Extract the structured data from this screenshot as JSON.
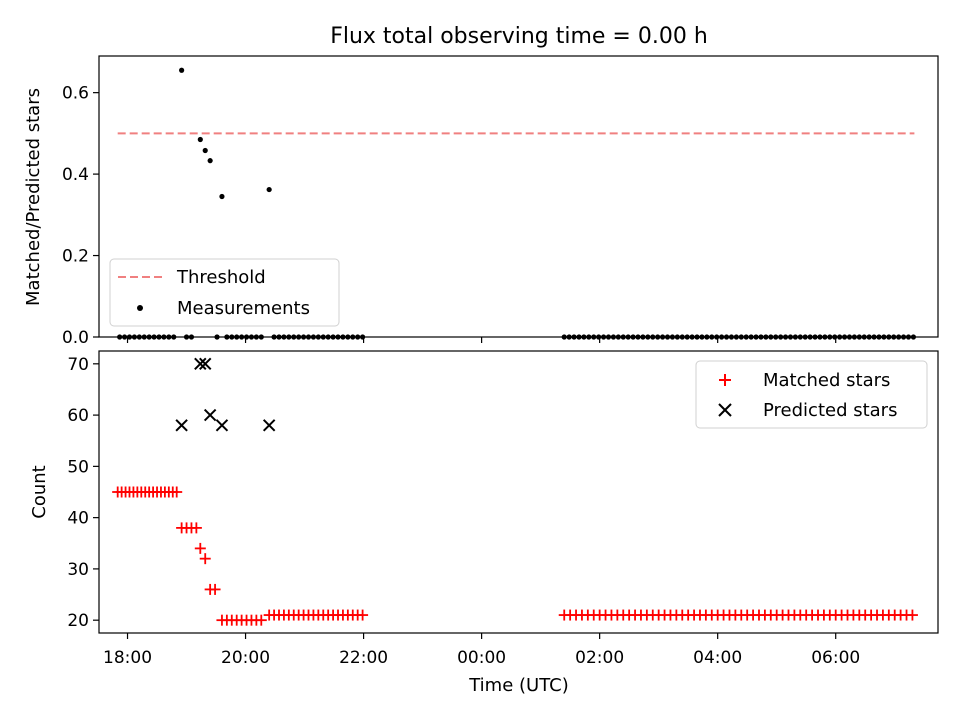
{
  "chart_data": [
    {
      "type": "scatter",
      "title": "Flux total observing time = 0.00 h",
      "xlabel": "",
      "ylabel": "Matched/Predicted stars",
      "xlim": [
        "17:31",
        "07:44"
      ],
      "ylim": [
        0,
        0.69
      ],
      "yticks": [
        0.0,
        0.2,
        0.4,
        0.6
      ],
      "ytick_labels": [
        "0.0",
        "0.2",
        "0.4",
        "0.6"
      ],
      "legend": {
        "placement": "lower-left",
        "entries": [
          "Threshold",
          "Measurements"
        ]
      },
      "threshold": {
        "name": "Threshold",
        "value": 0.5,
        "x_start": "17:50",
        "x_end": "07:20",
        "color": "#f08080"
      },
      "measurements": {
        "name": "Measurements",
        "color": "#000000",
        "points": [
          [
            "18:55",
            0.655
          ],
          [
            "19:14",
            0.485
          ],
          [
            "19:19",
            0.458
          ],
          [
            "19:24",
            0.433
          ],
          [
            "19:36",
            0.345
          ],
          [
            "20:24",
            0.362
          ],
          [
            "17:52",
            0
          ],
          [
            "17:57",
            0
          ],
          [
            "18:02",
            0
          ],
          [
            "18:07",
            0
          ],
          [
            "18:12",
            0
          ],
          [
            "18:17",
            0
          ],
          [
            "18:22",
            0
          ],
          [
            "18:27",
            0
          ],
          [
            "18:32",
            0
          ],
          [
            "18:37",
            0
          ],
          [
            "18:42",
            0
          ],
          [
            "18:47",
            0
          ],
          [
            "19:00",
            0
          ],
          [
            "19:05",
            0
          ],
          [
            "19:31",
            0
          ],
          [
            "19:41",
            0
          ],
          [
            "19:46",
            0
          ],
          [
            "19:51",
            0
          ],
          [
            "19:56",
            0
          ],
          [
            "20:01",
            0
          ],
          [
            "20:06",
            0
          ],
          [
            "20:11",
            0
          ],
          [
            "20:16",
            0
          ],
          [
            "20:29",
            0
          ],
          [
            "20:34",
            0
          ],
          [
            "20:39",
            0
          ],
          [
            "20:44",
            0
          ],
          [
            "20:49",
            0
          ],
          [
            "20:54",
            0
          ],
          [
            "20:59",
            0
          ],
          [
            "21:04",
            0
          ],
          [
            "21:09",
            0
          ],
          [
            "21:14",
            0
          ],
          [
            "21:19",
            0
          ],
          [
            "21:24",
            0
          ],
          [
            "21:29",
            0
          ],
          [
            "21:34",
            0
          ],
          [
            "21:39",
            0
          ],
          [
            "21:44",
            0
          ],
          [
            "21:49",
            0
          ],
          [
            "21:54",
            0
          ],
          [
            "21:59",
            0
          ],
          [
            "01:24",
            0
          ],
          [
            "01:29",
            0
          ],
          [
            "01:34",
            0
          ],
          [
            "01:39",
            0
          ],
          [
            "01:44",
            0
          ],
          [
            "01:49",
            0
          ],
          [
            "01:54",
            0
          ],
          [
            "01:59",
            0
          ],
          [
            "02:04",
            0
          ],
          [
            "02:09",
            0
          ],
          [
            "02:14",
            0
          ],
          [
            "02:19",
            0
          ],
          [
            "02:24",
            0
          ],
          [
            "02:29",
            0
          ],
          [
            "02:34",
            0
          ],
          [
            "02:39",
            0
          ],
          [
            "02:44",
            0
          ],
          [
            "02:49",
            0
          ],
          [
            "02:54",
            0
          ],
          [
            "02:59",
            0
          ],
          [
            "03:04",
            0
          ],
          [
            "03:09",
            0
          ],
          [
            "03:14",
            0
          ],
          [
            "03:19",
            0
          ],
          [
            "03:24",
            0
          ],
          [
            "03:29",
            0
          ],
          [
            "03:34",
            0
          ],
          [
            "03:39",
            0
          ],
          [
            "03:44",
            0
          ],
          [
            "03:49",
            0
          ],
          [
            "03:54",
            0
          ],
          [
            "03:59",
            0
          ],
          [
            "04:04",
            0
          ],
          [
            "04:09",
            0
          ],
          [
            "04:14",
            0
          ],
          [
            "04:19",
            0
          ],
          [
            "04:24",
            0
          ],
          [
            "04:29",
            0
          ],
          [
            "04:34",
            0
          ],
          [
            "04:39",
            0
          ],
          [
            "04:44",
            0
          ],
          [
            "04:49",
            0
          ],
          [
            "04:54",
            0
          ],
          [
            "04:59",
            0
          ],
          [
            "05:04",
            0
          ],
          [
            "05:09",
            0
          ],
          [
            "05:14",
            0
          ],
          [
            "05:19",
            0
          ],
          [
            "05:24",
            0
          ],
          [
            "05:29",
            0
          ],
          [
            "05:34",
            0
          ],
          [
            "05:39",
            0
          ],
          [
            "05:44",
            0
          ],
          [
            "05:49",
            0
          ],
          [
            "05:54",
            0
          ],
          [
            "05:59",
            0
          ],
          [
            "06:04",
            0
          ],
          [
            "06:09",
            0
          ],
          [
            "06:14",
            0
          ],
          [
            "06:19",
            0
          ],
          [
            "06:24",
            0
          ],
          [
            "06:29",
            0
          ],
          [
            "06:34",
            0
          ],
          [
            "06:39",
            0
          ],
          [
            "06:44",
            0
          ],
          [
            "06:49",
            0
          ],
          [
            "06:54",
            0
          ],
          [
            "06:59",
            0
          ],
          [
            "07:04",
            0
          ],
          [
            "07:09",
            0
          ],
          [
            "07:14",
            0
          ],
          [
            "07:19",
            0
          ]
        ]
      }
    },
    {
      "type": "scatter",
      "title": "",
      "xlabel": "Time (UTC)",
      "ylabel": "Count",
      "xlim": [
        "17:31",
        "07:44"
      ],
      "ylim": [
        17.5,
        72.5
      ],
      "xticks": [
        "18:00",
        "20:00",
        "22:00",
        "00:00",
        "02:00",
        "04:00",
        "06:00"
      ],
      "yticks": [
        20,
        30,
        40,
        50,
        60,
        70
      ],
      "ytick_labels": [
        "20",
        "30",
        "40",
        "50",
        "60",
        "70"
      ],
      "legend": {
        "placement": "top-right",
        "entries": [
          "Matched stars",
          "Predicted stars"
        ]
      },
      "series": [
        {
          "name": "Matched stars",
          "marker": "plus",
          "color": "#ff0000",
          "points": [
            [
              "17:50",
              45
            ],
            [
              "17:54",
              45
            ],
            [
              "17:58",
              45
            ],
            [
              "18:02",
              45
            ],
            [
              "18:06",
              45
            ],
            [
              "18:10",
              45
            ],
            [
              "18:14",
              45
            ],
            [
              "18:18",
              45
            ],
            [
              "18:22",
              45
            ],
            [
              "18:26",
              45
            ],
            [
              "18:30",
              45
            ],
            [
              "18:34",
              45
            ],
            [
              "18:38",
              45
            ],
            [
              "18:42",
              45
            ],
            [
              "18:46",
              45
            ],
            [
              "18:50",
              45
            ],
            [
              "18:55",
              38
            ],
            [
              "19:00",
              38
            ],
            [
              "19:05",
              38
            ],
            [
              "19:10",
              38
            ],
            [
              "19:14",
              34
            ],
            [
              "19:19",
              32
            ],
            [
              "19:24",
              26
            ],
            [
              "19:29",
              26
            ],
            [
              "19:36",
              20
            ],
            [
              "19:41",
              20
            ],
            [
              "19:46",
              20
            ],
            [
              "19:51",
              20
            ],
            [
              "19:56",
              20
            ],
            [
              "20:01",
              20
            ],
            [
              "20:06",
              20
            ],
            [
              "20:11",
              20
            ],
            [
              "20:16",
              20
            ],
            [
              "20:24",
              21
            ],
            [
              "20:29",
              21
            ],
            [
              "20:34",
              21
            ],
            [
              "20:39",
              21
            ],
            [
              "20:44",
              21
            ],
            [
              "20:49",
              21
            ],
            [
              "20:54",
              21
            ],
            [
              "20:59",
              21
            ],
            [
              "21:04",
              21
            ],
            [
              "21:09",
              21
            ],
            [
              "21:14",
              21
            ],
            [
              "21:19",
              21
            ],
            [
              "21:24",
              21
            ],
            [
              "21:29",
              21
            ],
            [
              "21:34",
              21
            ],
            [
              "21:39",
              21
            ],
            [
              "21:44",
              21
            ],
            [
              "21:49",
              21
            ],
            [
              "21:54",
              21
            ],
            [
              "21:59",
              21
            ],
            [
              "01:24",
              21
            ],
            [
              "01:30",
              21
            ],
            [
              "01:36",
              21
            ],
            [
              "01:42",
              21
            ],
            [
              "01:48",
              21
            ],
            [
              "01:54",
              21
            ],
            [
              "02:00",
              21
            ],
            [
              "02:06",
              21
            ],
            [
              "02:12",
              21
            ],
            [
              "02:18",
              21
            ],
            [
              "02:24",
              21
            ],
            [
              "02:30",
              21
            ],
            [
              "02:36",
              21
            ],
            [
              "02:42",
              21
            ],
            [
              "02:48",
              21
            ],
            [
              "02:54",
              21
            ],
            [
              "03:00",
              21
            ],
            [
              "03:06",
              21
            ],
            [
              "03:12",
              21
            ],
            [
              "03:18",
              21
            ],
            [
              "03:24",
              21
            ],
            [
              "03:30",
              21
            ],
            [
              "03:36",
              21
            ],
            [
              "03:42",
              21
            ],
            [
              "03:48",
              21
            ],
            [
              "03:54",
              21
            ],
            [
              "04:00",
              21
            ],
            [
              "04:06",
              21
            ],
            [
              "04:12",
              21
            ],
            [
              "04:18",
              21
            ],
            [
              "04:24",
              21
            ],
            [
              "04:30",
              21
            ],
            [
              "04:36",
              21
            ],
            [
              "04:42",
              21
            ],
            [
              "04:48",
              21
            ],
            [
              "04:54",
              21
            ],
            [
              "05:00",
              21
            ],
            [
              "05:06",
              21
            ],
            [
              "05:12",
              21
            ],
            [
              "05:18",
              21
            ],
            [
              "05:24",
              21
            ],
            [
              "05:30",
              21
            ],
            [
              "05:36",
              21
            ],
            [
              "05:42",
              21
            ],
            [
              "05:48",
              21
            ],
            [
              "05:54",
              21
            ],
            [
              "06:00",
              21
            ],
            [
              "06:06",
              21
            ],
            [
              "06:12",
              21
            ],
            [
              "06:18",
              21
            ],
            [
              "06:24",
              21
            ],
            [
              "06:30",
              21
            ],
            [
              "06:36",
              21
            ],
            [
              "06:42",
              21
            ],
            [
              "06:48",
              21
            ],
            [
              "06:54",
              21
            ],
            [
              "07:00",
              21
            ],
            [
              "07:06",
              21
            ],
            [
              "07:12",
              21
            ],
            [
              "07:18",
              21
            ]
          ]
        },
        {
          "name": "Predicted stars",
          "marker": "x",
          "color": "#000000",
          "points": [
            [
              "18:55",
              58
            ],
            [
              "19:14",
              70
            ],
            [
              "19:19",
              70
            ],
            [
              "19:24",
              60
            ],
            [
              "19:36",
              58
            ],
            [
              "20:24",
              58
            ]
          ]
        }
      ]
    }
  ]
}
